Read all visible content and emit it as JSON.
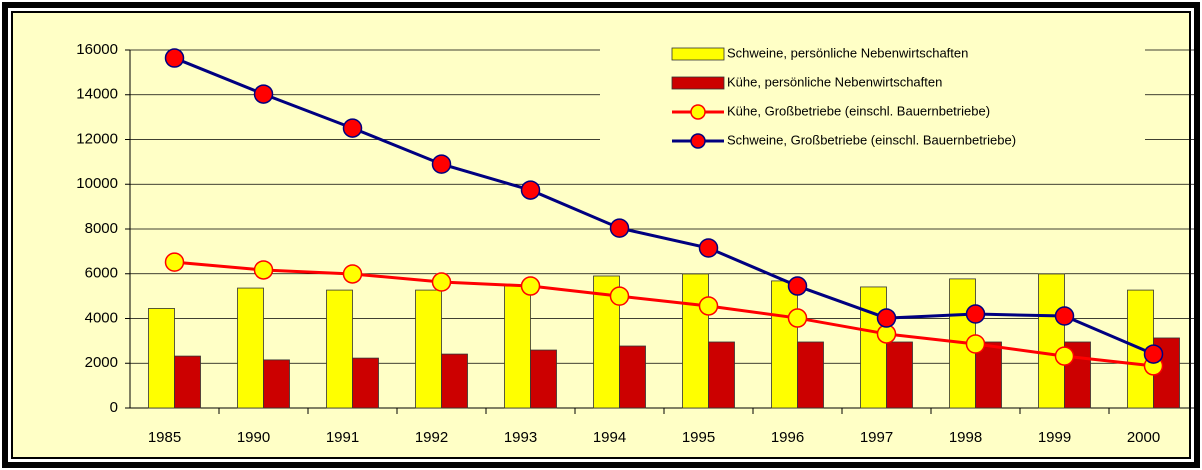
{
  "chart_data": {
    "type": "bar_line",
    "categories": [
      "1985",
      "1990",
      "1991",
      "1992",
      "1993",
      "1994",
      "1995",
      "1996",
      "1997",
      "1998",
      "1999",
      "2000"
    ],
    "series": [
      {
        "name": "Schweine, persönliche Nebenwirtschaften",
        "kind": "bar",
        "color": "#FFFF00",
        "values": [
          4450,
          5360,
          5270,
          5270,
          5500,
          5900,
          5990,
          5680,
          5410,
          5770,
          5990,
          5270
        ]
      },
      {
        "name": "Kühe, persönliche Nebenwirtschaften",
        "kind": "bar",
        "color": "#CC0000",
        "values": [
          2320,
          2150,
          2230,
          2410,
          2590,
          2770,
          2950,
          2950,
          2950,
          2950,
          2950,
          3130
        ]
      },
      {
        "name": "Kühe, Großbetriebe (einschl. Bauernbetriebe)",
        "kind": "line",
        "color": "#FF0000",
        "marker_color": "#FFFF00",
        "values": [
          6520,
          6170,
          5990,
          5630,
          5450,
          5000,
          4560,
          4020,
          3310,
          2860,
          2320,
          1880
        ]
      },
      {
        "name": "Schweine, Großbetriebe (einschl. Bauernbetriebe)",
        "kind": "line",
        "color": "#000080",
        "marker_color": "#FF0000",
        "values": [
          15640,
          14030,
          12510,
          10900,
          9740,
          8040,
          7150,
          5450,
          4020,
          4200,
          4110,
          2410
        ]
      }
    ],
    "ylim": [
      0,
      16000
    ],
    "yticks": [
      0,
      2000,
      4000,
      6000,
      8000,
      10000,
      12000,
      14000,
      16000
    ],
    "grid": true,
    "legend": "top-right"
  }
}
